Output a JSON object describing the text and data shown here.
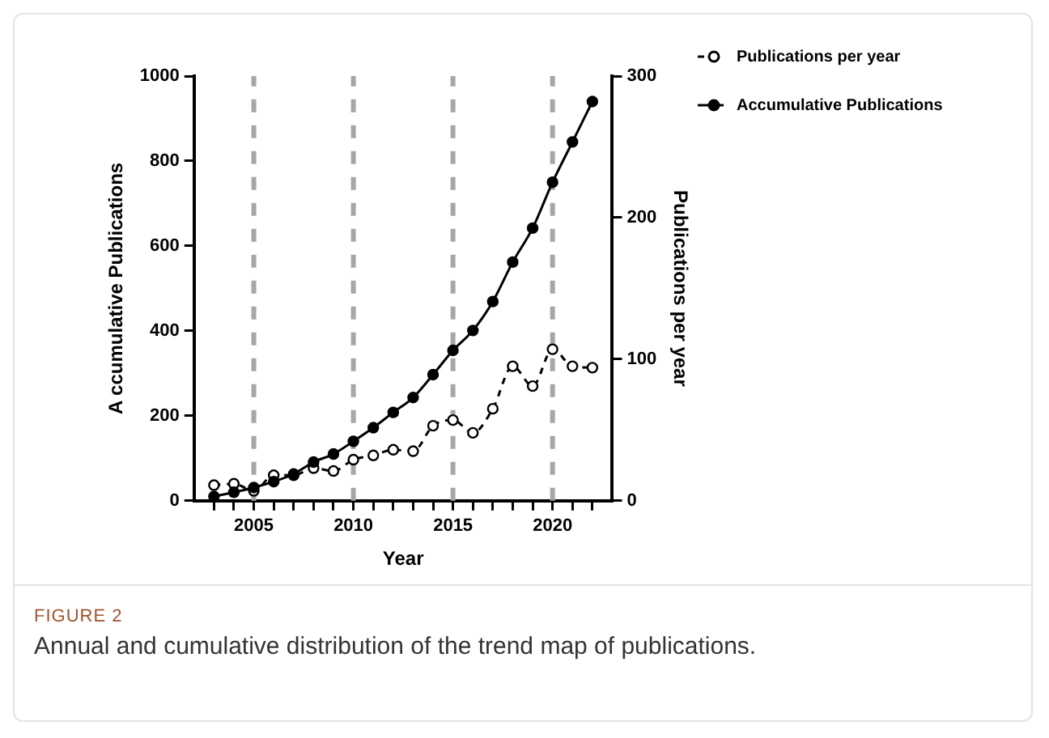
{
  "chart_data": {
    "type": "line",
    "xlabel": "Year",
    "ylabel": "A ccumulative Publications",
    "y2label": "Publications per year",
    "x": [
      2003,
      2004,
      2005,
      2006,
      2007,
      2008,
      2009,
      2010,
      2011,
      2012,
      2013,
      2014,
      2015,
      2016,
      2017,
      2018,
      2019,
      2020,
      2021,
      2022
    ],
    "series": [
      {
        "name": "Publications per year",
        "color": "#000000",
        "axis": "y2",
        "marker": "circle",
        "line_style": "dashed",
        "values": [
          11,
          12,
          7,
          18,
          18,
          23,
          21,
          29,
          32,
          36,
          35,
          53,
          57,
          48,
          65,
          95,
          81,
          107,
          95,
          94
        ]
      },
      {
        "name": "Accumulative Publications",
        "color": "#000000",
        "marker": "circle",
        "line_style": "solid",
        "values": [
          10,
          20,
          31,
          45,
          63,
          91,
          110,
          140,
          172,
          208,
          243,
          297,
          354,
          401,
          469,
          562,
          642,
          750,
          845,
          940
        ]
      }
    ],
    "xlim": [
      2002,
      2023
    ],
    "xticks": [
      {
        "value": 2003,
        "label": null
      },
      {
        "value": 2004,
        "label": null
      },
      2005,
      {
        "value": 2006,
        "label": null
      },
      {
        "value": 2007,
        "label": null
      },
      {
        "value": 2008,
        "label": null
      },
      {
        "value": 2009,
        "label": null
      },
      2010,
      {
        "value": 2011,
        "label": null
      },
      {
        "value": 2012,
        "label": null
      },
      {
        "value": 2013,
        "label": null
      },
      {
        "value": 2014,
        "label": null
      },
      2015,
      {
        "value": 2016,
        "label": null
      },
      {
        "value": 2017,
        "label": null
      },
      {
        "value": 2018,
        "label": null
      },
      {
        "value": 2019,
        "label": null
      },
      2020,
      {
        "value": 2021,
        "label": null
      },
      {
        "value": 2022,
        "label": null
      }
    ],
    "ylim": [
      0,
      1000
    ],
    "yticks": [
      0,
      200,
      400,
      600,
      800,
      1000
    ],
    "y2lim": [
      0,
      300
    ],
    "y2ticks": [
      0,
      100,
      200,
      300
    ],
    "ref_lines": [
      {
        "axis": "x",
        "value": 2005,
        "color": "#a6a6a6",
        "line_style": "dashed"
      },
      {
        "axis": "x",
        "value": 2010,
        "color": "#a6a6a6",
        "line_style": "dashed"
      },
      {
        "axis": "x",
        "value": 2015,
        "color": "#a6a6a6",
        "line_style": "dashed"
      },
      {
        "axis": "x",
        "value": 2020,
        "color": "#a6a6a6",
        "line_style": "dashed"
      }
    ],
    "grid": false,
    "legend": "top right",
    "annotations": [
      "FIGURE 2",
      "Annual and cumulative distribution of the trend map of publications."
    ]
  }
}
